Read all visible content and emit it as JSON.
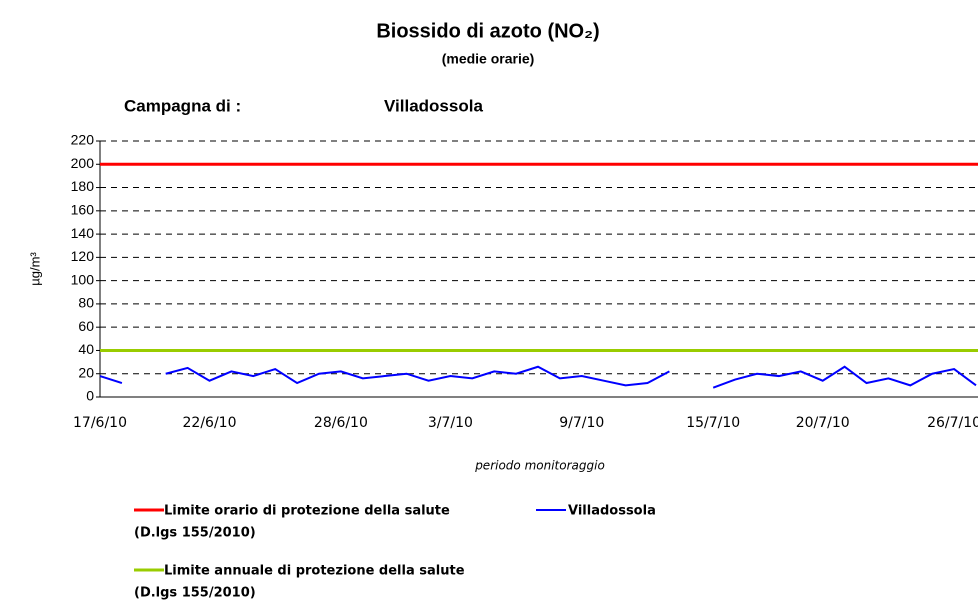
{
  "chart_data": {
    "type": "line",
    "title": "Biossido di azoto (NO₂)",
    "subtitle": "(medie orarie)",
    "campaign_label": "Campagna di :",
    "campaign_site": "Villadossola",
    "y_label": "µg/m³",
    "x_label": "periodo monitoraggio",
    "categories": [
      "17/6/10",
      null,
      null,
      null,
      null,
      "22/6/10",
      null,
      null,
      null,
      null,
      null,
      "28/6/10",
      null,
      null,
      null,
      null,
      "3/7/10",
      null,
      null,
      null,
      null,
      null,
      "9/7/10",
      null,
      null,
      null,
      null,
      null,
      "15/7/10",
      null,
      null,
      null,
      null,
      "20/7/10",
      null,
      null,
      null,
      null,
      null,
      "26/7/10",
      null
    ],
    "series": [
      {
        "name": "Villadossola",
        "color": "#0000ff",
        "values": [
          18,
          12,
          null,
          20,
          25,
          14,
          22,
          18,
          24,
          12,
          20,
          22,
          16,
          18,
          20,
          14,
          18,
          16,
          22,
          20,
          26,
          16,
          18,
          14,
          10,
          12,
          22,
          null,
          8,
          15,
          20,
          18,
          22,
          14,
          26,
          12,
          16,
          10,
          20,
          24,
          10
        ]
      }
    ],
    "limits": [
      {
        "name": "Limite orario di protezione della salute",
        "note": "(D.lgs 155/2010)",
        "color": "#ff0000",
        "value": 200
      },
      {
        "name": "Limite annuale di protezione della salute",
        "note": "(D.lgs 155/2010)",
        "color": "#99cc00",
        "value": 40
      }
    ],
    "ylim": [
      0,
      220
    ],
    "yticks": [
      0,
      20,
      40,
      60,
      80,
      100,
      120,
      140,
      160,
      180,
      200,
      220
    ],
    "grid": true
  }
}
